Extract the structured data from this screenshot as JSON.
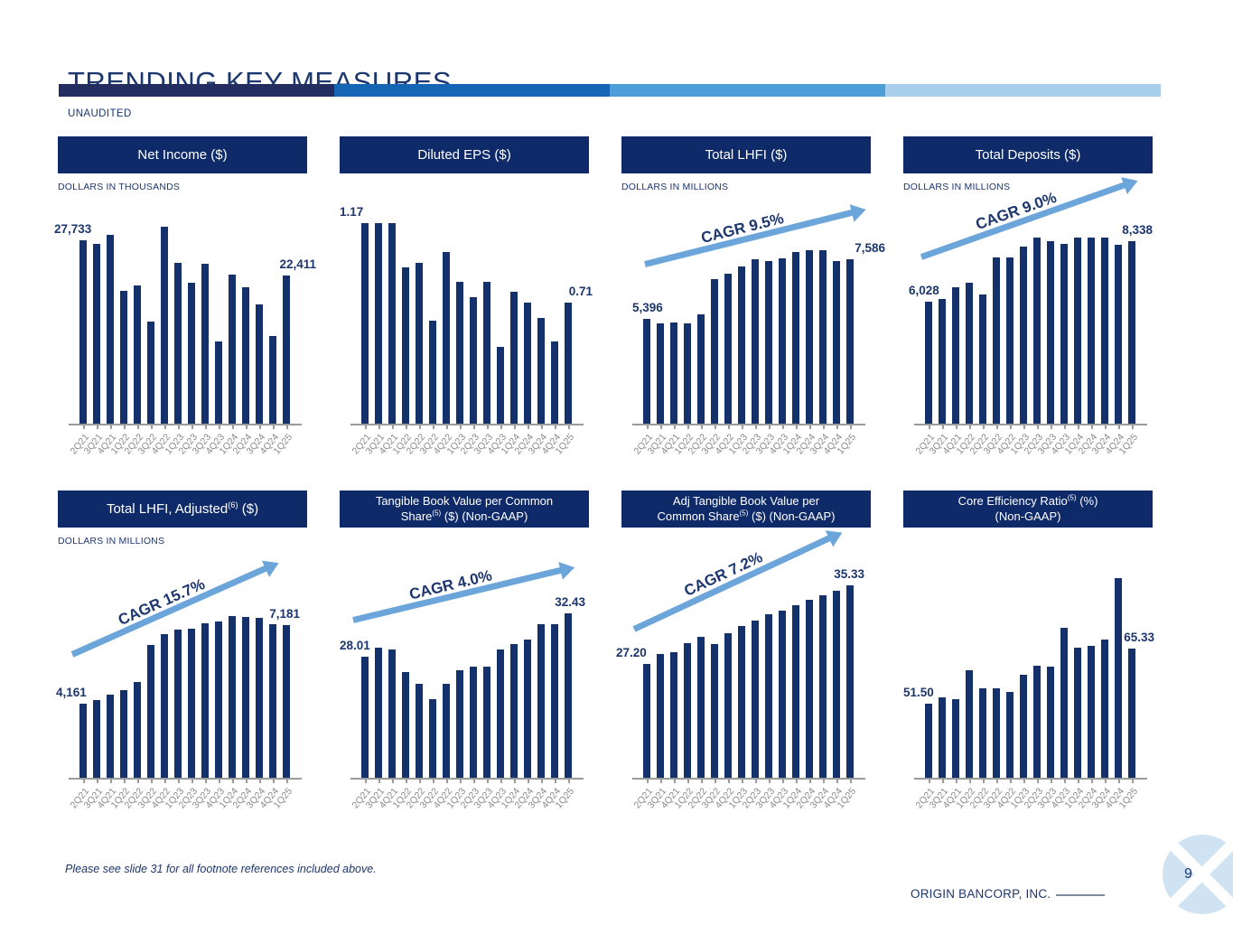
{
  "slide": {
    "title": "TRENDING KEY MEASURES",
    "unaudited_label": "UNAUDITED",
    "footnote": "Please see slide 31 for all footnote references included above.",
    "company": "ORIGIN BANCORP, INC.",
    "page_number": "9",
    "accent_bar_colors": [
      "#232d5f",
      "#1465b4",
      "#4d9dd8",
      "#a8cfec"
    ],
    "colors": {
      "navy": "#1c366e",
      "header_bg": "#0f2a68",
      "bar_color": "#14316b",
      "arrow_blue": "#6ba5da",
      "axis_gray": "#9b9b9b",
      "label_gray": "#8a8a8a",
      "logo_blue": "#cfe3f3"
    }
  },
  "chart_data": {
    "categories": [
      "2Q21",
      "3Q21",
      "4Q21",
      "1Q22",
      "2Q22",
      "3Q22",
      "4Q22",
      "1Q23",
      "2Q23",
      "3Q23",
      "4Q23",
      "1Q24",
      "2Q24",
      "3Q24",
      "4Q24",
      "1Q25"
    ],
    "charts": [
      {
        "id": "net-income",
        "type": "bar",
        "title_lines": [
          [
            {
              "t": "Net Income ($)"
            }
          ]
        ],
        "units": "DOLLARS IN THOUSANDS",
        "values": [
          27733,
          27200,
          28600,
          20170,
          21010,
          15480,
          29830,
          24290,
          21390,
          24200,
          12480,
          22600,
          20640,
          18100,
          13370,
          22411
        ],
        "ylim": [
          0,
          34000
        ],
        "first_label": "27,733",
        "last_label": "22,411",
        "cagr": null
      },
      {
        "id": "diluted-eps",
        "type": "bar",
        "title_lines": [
          [
            {
              "t": "Diluted EPS ($)"
            }
          ]
        ],
        "units": null,
        "values": [
          1.17,
          1.17,
          1.17,
          0.91,
          0.94,
          0.6,
          1.0,
          0.83,
          0.74,
          0.83,
          0.45,
          0.77,
          0.71,
          0.62,
          0.48,
          0.71
        ],
        "ylim": [
          0,
          1.31
        ],
        "first_label": "1.17",
        "last_label": "0.71",
        "cagr": null
      },
      {
        "id": "total-lhfi",
        "type": "bar",
        "title_lines": [
          [
            {
              "t": "Total LHFI ($)"
            }
          ]
        ],
        "units": "DOLLARS IN MILLIONS",
        "values": [
          5396,
          5205,
          5260,
          5205,
          5540,
          6860,
          7070,
          7330,
          7585,
          7520,
          7620,
          7855,
          7920,
          7920,
          7520,
          7586
        ],
        "ylim": [
          1450,
          9850
        ],
        "first_label": "5,396",
        "last_label": "7,586",
        "cagr": "CAGR 9.5%"
      },
      {
        "id": "total-deposits",
        "type": "bar",
        "title_lines": [
          [
            {
              "t": "Total Deposits ($)"
            }
          ]
        ],
        "units": "DOLLARS IN MILLIONS",
        "values": [
          6028,
          6130,
          6580,
          6765,
          6305,
          7740,
          7740,
          8140,
          8475,
          8340,
          8245,
          8485,
          8485,
          8485,
          8200,
          8338
        ],
        "ylim": [
          1330,
          9980
        ],
        "first_label": "6,028",
        "last_label": "8,338",
        "cagr": "CAGR 9.0%"
      },
      {
        "id": "total-lhfi-adjusted",
        "type": "bar",
        "title_lines": [
          [
            {
              "t": "Total LHFI, Adjusted"
            },
            {
              "sup": "(6)"
            },
            {
              "t": " ($)"
            }
          ]
        ],
        "units": "DOLLARS IN MILLIONS",
        "values": [
          4161,
          4310,
          4520,
          4680,
          5000,
          6420,
          6825,
          7020,
          7045,
          7250,
          7310,
          7540,
          7485,
          7470,
          7230,
          7181
        ],
        "ylim": [
          1310,
          9940
        ],
        "first_label": "4,161",
        "last_label": "7,181",
        "cagr": "CAGR 15.7%"
      },
      {
        "id": "tangible-book-value-per-share",
        "type": "bar",
        "title_lines": [
          [
            {
              "t": "Tangible Book Value per Common"
            }
          ],
          [
            {
              "t": "Share"
            },
            {
              "sup": "(5)"
            },
            {
              "t": " ($) (Non-GAAP)"
            }
          ]
        ],
        "units": null,
        "values": [
          28.01,
          28.88,
          28.72,
          26.4,
          25.23,
          23.62,
          25.17,
          26.56,
          26.93,
          26.93,
          28.72,
          29.25,
          29.74,
          31.35,
          31.35,
          32.43
        ],
        "ylim": [
          15.4,
          38.7
        ],
        "first_label": "28.01",
        "last_label": "32.43",
        "cagr": "CAGR 4.0%"
      },
      {
        "id": "adj-tangible-book-value-per-share",
        "type": "bar",
        "title_lines": [
          [
            {
              "t": "Adj Tangible Book Value per"
            }
          ],
          [
            {
              "t": "Common Share"
            },
            {
              "sup": "(5)"
            },
            {
              "t": " ($) (Non-GAAP)"
            }
          ]
        ],
        "units": null,
        "values": [
          27.2,
          28.22,
          28.44,
          29.36,
          30.07,
          29.3,
          30.38,
          31.16,
          31.71,
          32.33,
          32.7,
          33.32,
          33.84,
          34.34,
          34.77,
          35.33
        ],
        "ylim": [
          15.4,
          38.7
        ],
        "first_label": "27.20",
        "last_label": "35.33",
        "cagr": "CAGR 7.2%"
      },
      {
        "id": "core-efficiency-ratio",
        "type": "bar",
        "title_lines": [
          [
            {
              "t": "Core Efficiency Ratio"
            },
            {
              "sup": "(5)"
            },
            {
              "t": " (%)"
            }
          ],
          [
            {
              "t": "(Non-GAAP)"
            }
          ]
        ],
        "units": null,
        "values": [
          51.5,
          53.2,
          52.6,
          59.9,
          55.5,
          55.5,
          54.5,
          58.7,
          61.0,
          60.7,
          70.4,
          65.5,
          65.9,
          67.6,
          82.7,
          65.33
        ],
        "ylim": [
          33,
          89
        ],
        "first_label": "51.50",
        "last_label": "65.33",
        "cagr": null
      }
    ]
  }
}
